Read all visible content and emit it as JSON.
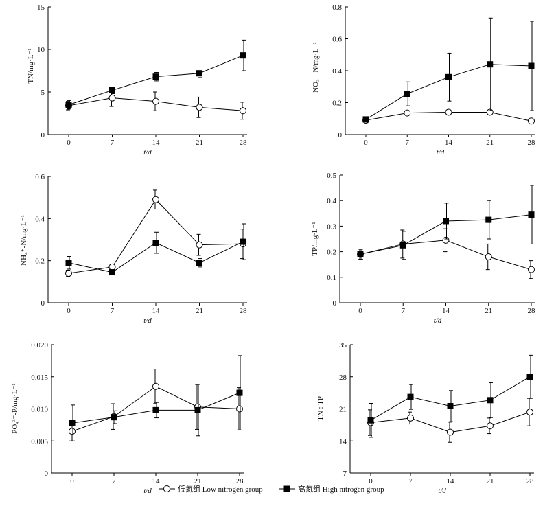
{
  "x_categories": [
    "0",
    "7",
    "14",
    "21",
    "28"
  ],
  "xlabel": "t/d",
  "legend": [
    {
      "label": "低氮组 Low nitrogen group",
      "marker": "open-circle",
      "color": "#000000"
    },
    {
      "label": "高氮组 High nitrogen group",
      "marker": "filled-square",
      "color": "#000000"
    }
  ],
  "chart_data": [
    {
      "type": "line",
      "ylabel": "TN/mg·L⁻¹",
      "ylim": [
        0,
        15
      ],
      "yticks": [
        "0",
        "5",
        "10",
        "15"
      ],
      "xlabel": "t/d",
      "categories": [
        "0",
        "7",
        "14",
        "21",
        "28"
      ],
      "series": [
        {
          "name": "低氮组 Low nitrogen group",
          "values": [
            3.4,
            4.3,
            3.9,
            3.2,
            2.8
          ],
          "error": [
            0.5,
            1.0,
            1.1,
            1.2,
            1.0
          ]
        },
        {
          "name": "高氮组 High nitrogen group",
          "values": [
            3.5,
            5.2,
            6.8,
            7.2,
            9.3
          ],
          "error": [
            0.5,
            0.4,
            0.5,
            0.5,
            1.8
          ]
        }
      ]
    },
    {
      "type": "line",
      "ylabel": "NO₃⁻-N/mg·L⁻¹",
      "ylim": [
        0,
        0.8
      ],
      "yticks": [
        "0",
        "0.2",
        "0.4",
        "0.6",
        "0.8"
      ],
      "xlabel": "t/d",
      "categories": [
        "0",
        "7",
        "14",
        "21",
        "28"
      ],
      "series": [
        {
          "name": "低氮组 Low nitrogen group",
          "values": [
            0.09,
            0.135,
            0.14,
            0.14,
            0.085
          ],
          "error": [
            0.01,
            0.01,
            0.01,
            0.01,
            0.01
          ]
        },
        {
          "name": "高氮组 High nitrogen group",
          "values": [
            0.095,
            0.255,
            0.36,
            0.44,
            0.43
          ],
          "error": [
            0.01,
            0.075,
            0.15,
            0.29,
            0.28
          ]
        }
      ]
    },
    {
      "type": "line",
      "ylabel": "NH₄⁺-N/mg·L⁻¹",
      "ylim": [
        0,
        0.6
      ],
      "yticks": [
        "0",
        "0.2",
        "0.4",
        "0.6"
      ],
      "xlabel": "t/d",
      "categories": [
        "0",
        "7",
        "14",
        "21",
        "28"
      ],
      "series": [
        {
          "name": "低氮组 Low nitrogen group",
          "values": [
            0.14,
            0.17,
            0.49,
            0.275,
            0.28
          ],
          "error": [
            0.015,
            0.01,
            0.045,
            0.05,
            0.07
          ]
        },
        {
          "name": "高氮组 High nitrogen group",
          "values": [
            0.19,
            0.145,
            0.285,
            0.19,
            0.29
          ],
          "error": [
            0.03,
            0.01,
            0.05,
            0.02,
            0.085
          ]
        }
      ]
    },
    {
      "type": "line",
      "ylabel": "TP/mg·L⁻¹",
      "ylim": [
        0,
        0.5
      ],
      "yticks": [
        "0",
        "0.1",
        "0.2",
        "0.3",
        "0.4",
        "0.5"
      ],
      "xlabel": "t/d",
      "categories": [
        "0",
        "7",
        "14",
        "21",
        "28"
      ],
      "series": [
        {
          "name": "低氮组 Low nitrogen group",
          "values": [
            0.19,
            0.23,
            0.245,
            0.18,
            0.13
          ],
          "error": [
            0.02,
            0.055,
            0.045,
            0.05,
            0.035
          ]
        },
        {
          "name": "高氮组 High nitrogen group",
          "values": [
            0.19,
            0.225,
            0.32,
            0.325,
            0.345
          ],
          "error": [
            0.02,
            0.055,
            0.07,
            0.075,
            0.115
          ]
        }
      ]
    },
    {
      "type": "line",
      "ylabel": "PO₄³⁻-P/mg·L⁻¹",
      "ylim": [
        0,
        0.02
      ],
      "yticks": [
        "0",
        "0.005",
        "0.010",
        "0.015",
        "0.020"
      ],
      "xlabel": "t/d",
      "categories": [
        "0",
        "7",
        "14",
        "21",
        "28"
      ],
      "series": [
        {
          "name": "低氮组 Low nitrogen group",
          "values": [
            0.0065,
            0.0088,
            0.0135,
            0.0103,
            0.01
          ],
          "error": [
            0.0015,
            0.002,
            0.0027,
            0.0035,
            0.0033
          ]
        },
        {
          "name": "高氮组 High nitrogen group",
          "values": [
            0.0078,
            0.0087,
            0.0098,
            0.0098,
            0.0125
          ],
          "error": [
            0.0028,
            0.001,
            0.0012,
            0.004,
            0.0058
          ]
        }
      ]
    },
    {
      "type": "line",
      "ylabel": "TN : TP",
      "ylim": [
        7,
        35
      ],
      "yticks": [
        "7",
        "14",
        "21",
        "28",
        "35"
      ],
      "xlabel": "t/d",
      "categories": [
        "0",
        "7",
        "14",
        "21",
        "28"
      ],
      "series": [
        {
          "name": "低氮组 Low nitrogen group",
          "values": [
            18.0,
            19.0,
            15.9,
            17.3,
            20.3
          ],
          "error": [
            2.8,
            1.3,
            2.2,
            1.7,
            3.0
          ]
        },
        {
          "name": "高氮组 High nitrogen group",
          "values": [
            18.5,
            23.6,
            21.6,
            22.9,
            28.0
          ],
          "error": [
            3.7,
            2.7,
            3.4,
            3.8,
            4.7
          ]
        }
      ]
    }
  ]
}
